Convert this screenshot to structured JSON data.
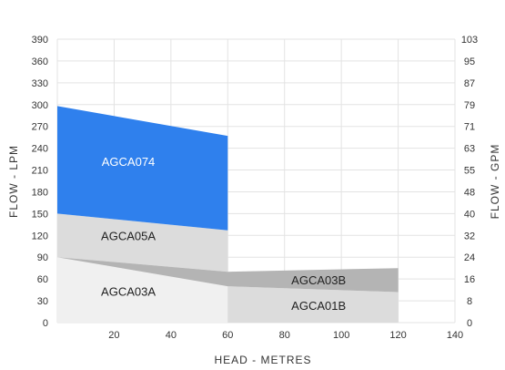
{
  "chart_data": {
    "type": "area",
    "xlabel": "HEAD - METRES",
    "ylabel": "FLOW - LPM",
    "y2label": "FLOW - GPM",
    "xlim": [
      0,
      140
    ],
    "ylim": [
      0,
      390
    ],
    "x_ticks": [
      "20",
      "40",
      "60",
      "80",
      "100",
      "120",
      "140"
    ],
    "x_tick_values": [
      20,
      40,
      60,
      80,
      100,
      120,
      140
    ],
    "y_ticks": [
      "0",
      "30",
      "60",
      "90",
      "120",
      "150",
      "180",
      "210",
      "240",
      "270",
      "300",
      "330",
      "360",
      "390"
    ],
    "y_tick_values": [
      0,
      30,
      60,
      90,
      120,
      150,
      180,
      210,
      240,
      270,
      300,
      330,
      360,
      390
    ],
    "y2_ticks": [
      "0",
      "8",
      "16",
      "24",
      "32",
      "40",
      "48",
      "55",
      "63",
      "71",
      "79",
      "87",
      "95",
      "103"
    ],
    "grid": true,
    "regions": [
      {
        "name": "AGCA03A",
        "color": "#f0f0f0",
        "polygon": [
          [
            0,
            0
          ],
          [
            60,
            0
          ],
          [
            60,
            70
          ],
          [
            0,
            90
          ]
        ],
        "label_at": [
          25,
          43
        ]
      },
      {
        "name": "AGCA01B",
        "color": "#dcdcdc",
        "polygon": [
          [
            60,
            0
          ],
          [
            120,
            0
          ],
          [
            120,
            42
          ],
          [
            60,
            50
          ]
        ],
        "label_at": [
          92,
          24
        ]
      },
      {
        "name": "AGCA05A",
        "color": "#dcdcdc",
        "polygon": [
          [
            0,
            90
          ],
          [
            60,
            70
          ],
          [
            60,
            127
          ],
          [
            0,
            150
          ]
        ],
        "label_at": [
          25,
          120
        ]
      },
      {
        "name": "AGCA03B",
        "color": "#b4b4b4",
        "polygon": [
          [
            0,
            90
          ],
          [
            60,
            70
          ],
          [
            120,
            75
          ],
          [
            120,
            42
          ],
          [
            60,
            50
          ]
        ],
        "label_at": [
          92,
          59
        ]
      },
      {
        "name": "AGCA074",
        "color": "#2f80ed",
        "polygon": [
          [
            0,
            150
          ],
          [
            60,
            127
          ],
          [
            60,
            257
          ],
          [
            0,
            298
          ]
        ],
        "label_at": [
          25,
          222
        ]
      }
    ]
  }
}
